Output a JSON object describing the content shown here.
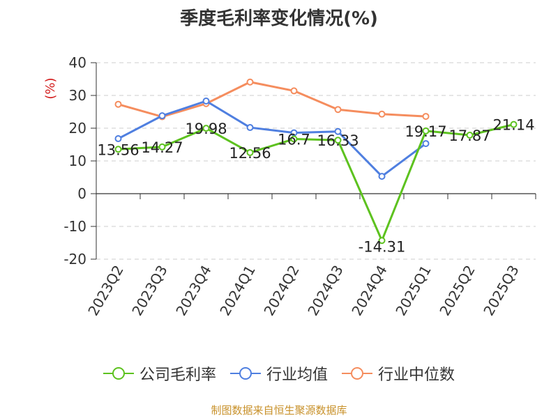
{
  "chart_data": {
    "type": "line",
    "title": "季度毛利率变化情况(%)",
    "ylabel": "(%)",
    "xlabel": "",
    "ylim": [
      -20,
      40
    ],
    "yticks": [
      -20,
      -10,
      0,
      10,
      20,
      30,
      40
    ],
    "grid": true,
    "legend_position": "bottom",
    "categories": [
      "2023Q2",
      "2023Q3",
      "2023Q4",
      "2024Q1",
      "2024Q2",
      "2024Q3",
      "2024Q4",
      "2025Q1",
      "2025Q2",
      "2025Q3"
    ],
    "series": [
      {
        "name": "公司毛利率",
        "color": "#5dc21f",
        "values": [
          13.56,
          14.27,
          19.98,
          12.56,
          16.7,
          16.33,
          -14.31,
          19.17,
          17.87,
          21.14
        ],
        "labels": [
          "13.56",
          "14.27",
          "19.98",
          "12.56",
          "16.7",
          "16.33",
          "-14.31",
          "19.17",
          "17.87",
          "21.14"
        ]
      },
      {
        "name": "行业均值",
        "color": "#4f7fe0",
        "values": [
          16.8,
          23.8,
          28.3,
          20.2,
          18.6,
          19.0,
          5.3,
          15.3,
          null,
          null
        ]
      },
      {
        "name": "行业中位数",
        "color": "#f58d5e",
        "values": [
          27.3,
          23.5,
          27.5,
          34.1,
          31.4,
          25.7,
          24.3,
          23.6,
          null,
          null
        ]
      }
    ]
  },
  "source_note": "制图数据来自恒生聚源数据库"
}
